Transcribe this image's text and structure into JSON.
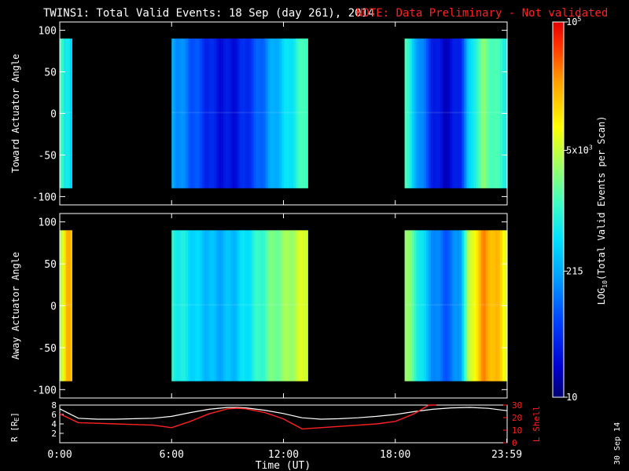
{
  "header": {
    "title": "TWINS1: Total Valid Events: 18 Sep (day 261), 2014",
    "note": "NOTE: Data Preliminary - Not validated"
  },
  "colors": {
    "background": "#000000",
    "note": "#ff2020",
    "r_line": "#ffffff",
    "l_shell_line": "#ff2020"
  },
  "chart_data": [
    {
      "type": "heatmap",
      "name": "toward",
      "ylabel": "Toward Actuator Angle",
      "xlim": [
        0,
        24
      ],
      "ylim": [
        -110,
        110
      ],
      "yticks": [
        100,
        50,
        0,
        -50,
        -100
      ],
      "data_range_y": [
        -90,
        90
      ],
      "segments": [
        {
          "start": 0.0,
          "end": 0.65,
          "profile": [
            0.55,
            0.5,
            0.46,
            0.42,
            0.45,
            0.48,
            0.44,
            0.4
          ]
        },
        {
          "start": 6.0,
          "end": 13.3,
          "profile": [
            0.35,
            0.3,
            0.26,
            0.22,
            0.18,
            0.14,
            0.12,
            0.11,
            0.12,
            0.15,
            0.19,
            0.24,
            0.3,
            0.35,
            0.4,
            0.45,
            0.5,
            0.55
          ]
        },
        {
          "start": 18.5,
          "end": 24.0,
          "profile": [
            0.55,
            0.4,
            0.3,
            0.2,
            0.12,
            0.08,
            0.1,
            0.15,
            0.35,
            0.5,
            0.58,
            0.55,
            0.5,
            0.48
          ]
        }
      ]
    },
    {
      "type": "heatmap",
      "name": "away",
      "ylabel": "Away Actuator Angle",
      "xlim": [
        0,
        24
      ],
      "ylim": [
        -110,
        110
      ],
      "yticks": [
        100,
        50,
        0,
        -50,
        -100
      ],
      "data_range_y": [
        -90,
        90
      ],
      "segments": [
        {
          "start": 0.0,
          "end": 0.65,
          "profile": [
            0.62,
            0.66,
            0.72,
            0.82,
            0.85,
            0.8
          ]
        },
        {
          "start": 6.0,
          "end": 13.3,
          "profile": [
            0.5,
            0.46,
            0.44,
            0.4,
            0.38,
            0.36,
            0.35,
            0.36,
            0.38,
            0.42,
            0.46,
            0.5,
            0.55,
            0.58,
            0.6,
            0.63,
            0.66,
            0.7
          ]
        },
        {
          "start": 18.5,
          "end": 24.0,
          "profile": [
            0.62,
            0.55,
            0.45,
            0.35,
            0.28,
            0.24,
            0.26,
            0.32,
            0.6,
            0.75,
            0.85,
            0.82,
            0.78,
            0.7
          ]
        }
      ]
    },
    {
      "type": "line",
      "name": "orbit",
      "ylabel": "R [R",
      "ylabel_sub": "E",
      "ylabel_end": "]",
      "y2label": "L Shell",
      "xlabel": "Time (UT)",
      "xlim": [
        0,
        24
      ],
      "ylim": [
        0,
        8
      ],
      "y2lim": [
        0,
        30
      ],
      "yticks": [
        8,
        6,
        4,
        2
      ],
      "y2ticks": [
        30,
        20,
        10,
        0
      ],
      "xticks": [
        {
          "v": 0,
          "label": "0:00"
        },
        {
          "v": 6,
          "label": "6:00"
        },
        {
          "v": 12,
          "label": "12:00"
        },
        {
          "v": 18,
          "label": "18:00"
        },
        {
          "v": 23.98,
          "label": "23:59"
        }
      ],
      "series": [
        {
          "key": "r",
          "x": [
            0,
            1,
            2,
            3,
            4,
            5,
            6,
            7,
            8,
            9,
            9.5,
            10,
            11,
            12,
            13,
            14,
            15,
            16,
            17,
            18,
            19,
            20,
            21,
            22,
            23,
            24
          ],
          "y": [
            7.2,
            5.2,
            5.0,
            5.0,
            5.1,
            5.2,
            5.6,
            6.4,
            7.1,
            7.5,
            7.5,
            7.4,
            6.9,
            6.2,
            5.3,
            5.0,
            5.1,
            5.3,
            5.6,
            6.0,
            6.6,
            7.1,
            7.4,
            7.5,
            7.3,
            6.8
          ]
        },
        {
          "key": "l",
          "x": [
            0,
            1,
            2,
            3,
            4,
            5,
            6,
            7,
            8,
            9,
            9.5,
            10,
            11,
            12,
            13,
            14,
            15,
            16,
            17,
            18,
            19,
            19.8,
            20.2
          ],
          "y": [
            23,
            16,
            15.5,
            15,
            14.5,
            14,
            12,
            17,
            23,
            27,
            27.5,
            27,
            24,
            19,
            11,
            12,
            13,
            14,
            15,
            17,
            23,
            30,
            31
          ]
        }
      ]
    }
  ],
  "colorbar": {
    "label_pre": "LOG",
    "label_sub": "10",
    "label_post": "(Total Valid Events per Scan)",
    "ticks": [
      {
        "frac": 1.0,
        "base": "10",
        "exp": "5"
      },
      {
        "frac": 0.658,
        "base": "5x10",
        "exp": "3"
      },
      {
        "frac": 0.336,
        "base": "215",
        "exp": ""
      },
      {
        "frac": 0.0,
        "base": "10",
        "exp": ""
      }
    ]
  },
  "footer": {
    "date_stamp": "30 Sep 14"
  }
}
